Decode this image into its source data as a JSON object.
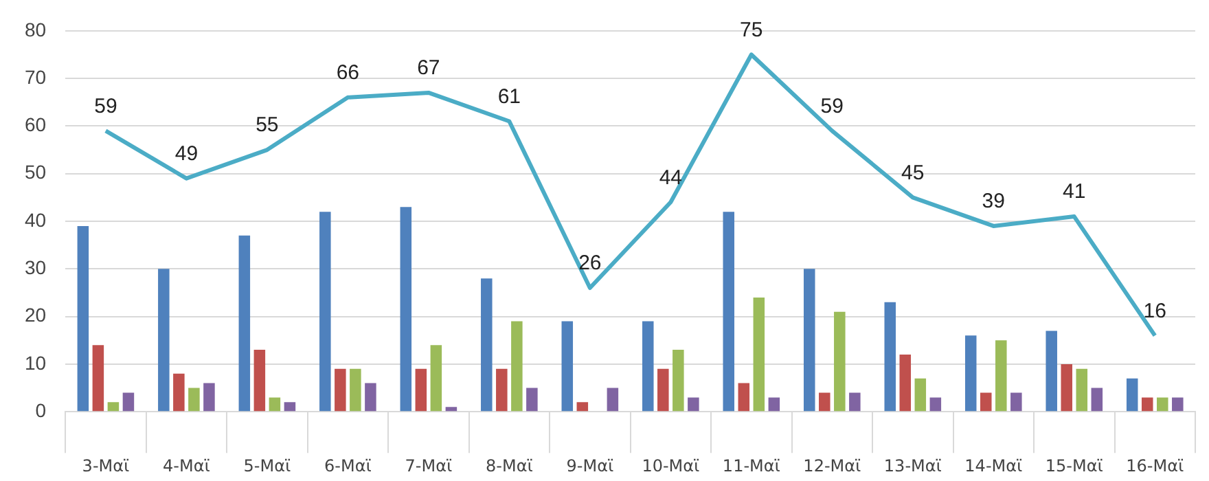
{
  "chart_data": {
    "type": "bar",
    "categories": [
      "3-Μαϊ",
      "4-Μαϊ",
      "5-Μαϊ",
      "6-Μαϊ",
      "7-Μαϊ",
      "8-Μαϊ",
      "9-Μαϊ",
      "10-Μαϊ",
      "11-Μαϊ",
      "12-Μαϊ",
      "13-Μαϊ",
      "14-Μαϊ",
      "15-Μαϊ",
      "16-Μαϊ"
    ],
    "ylim": [
      0,
      80
    ],
    "yticks": [
      0,
      10,
      20,
      30,
      40,
      50,
      60,
      70,
      80
    ],
    "grid": "y",
    "legend": false,
    "series": [
      {
        "type": "line",
        "color": "#4bacc6",
        "marker": "none",
        "values": [
          59,
          49,
          55,
          66,
          67,
          61,
          26,
          44,
          75,
          59,
          45,
          39,
          41,
          16
        ],
        "value_labels": [
          "59",
          "49",
          "55",
          "66",
          "67",
          "61",
          "26",
          "44",
          "75",
          "59",
          "45",
          "39",
          "41",
          "16"
        ]
      },
      {
        "color": "#4f81bd",
        "values": [
          39,
          30,
          37,
          42,
          43,
          28,
          19,
          19,
          42,
          30,
          23,
          16,
          17,
          7
        ]
      },
      {
        "color": "#c0504d",
        "values": [
          14,
          8,
          13,
          9,
          9,
          9,
          2,
          9,
          6,
          4,
          12,
          4,
          10,
          3
        ]
      },
      {
        "color": "#9bbb59",
        "values": [
          2,
          5,
          3,
          9,
          14,
          19,
          0,
          13,
          24,
          21,
          7,
          15,
          9,
          3
        ]
      },
      {
        "color": "#8064a2",
        "values": [
          4,
          6,
          2,
          6,
          1,
          5,
          5,
          3,
          3,
          4,
          3,
          4,
          5,
          3
        ]
      }
    ]
  }
}
